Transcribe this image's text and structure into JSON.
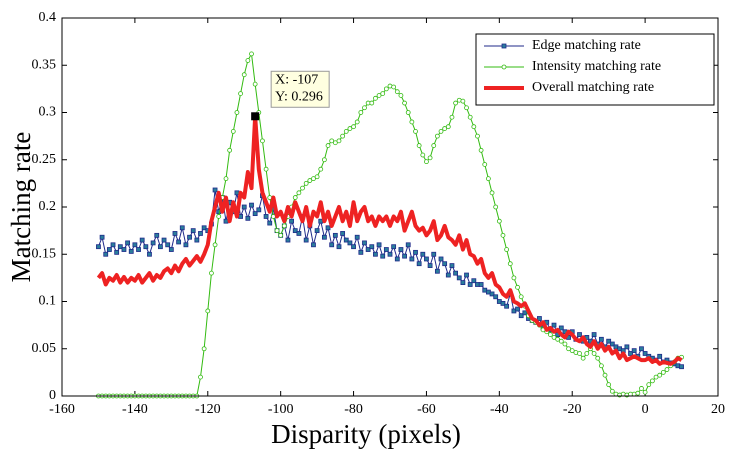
{
  "chart_data": {
    "type": "line",
    "xlabel": "Disparity (pixels)",
    "ylabel": "Matching rate",
    "xlim": [
      -160,
      20
    ],
    "xticks": [
      -160,
      -140,
      -120,
      -100,
      -80,
      -60,
      -40,
      -20,
      0,
      20
    ],
    "ylim": [
      0,
      0.4
    ],
    "yticks": [
      0,
      0.05,
      0.1,
      0.15,
      0.2,
      0.25,
      0.3,
      0.35,
      0.4
    ],
    "legend": "upper right",
    "x": [
      -150,
      -149,
      -148,
      -147,
      -146,
      -145,
      -144,
      -143,
      -142,
      -141,
      -140,
      -139,
      -138,
      -137,
      -136,
      -135,
      -134,
      -133,
      -132,
      -131,
      -130,
      -129,
      -128,
      -127,
      -126,
      -125,
      -124,
      -123,
      -122,
      -121,
      -120,
      -119,
      -118,
      -117,
      -116,
      -115,
      -114,
      -113,
      -112,
      -111,
      -110,
      -109,
      -108,
      -107,
      -106,
      -105,
      -104,
      -103,
      -102,
      -101,
      -100,
      -99,
      -98,
      -97,
      -96,
      -95,
      -94,
      -93,
      -92,
      -91,
      -90,
      -89,
      -88,
      -87,
      -86,
      -85,
      -84,
      -83,
      -82,
      -81,
      -80,
      -79,
      -78,
      -77,
      -76,
      -75,
      -74,
      -73,
      -72,
      -71,
      -70,
      -69,
      -68,
      -67,
      -66,
      -65,
      -64,
      -63,
      -62,
      -61,
      -60,
      -59,
      -58,
      -57,
      -56,
      -55,
      -54,
      -53,
      -52,
      -51,
      -50,
      -49,
      -48,
      -47,
      -46,
      -45,
      -44,
      -43,
      -42,
      -41,
      -40,
      -39,
      -38,
      -37,
      -36,
      -35,
      -34,
      -33,
      -32,
      -31,
      -30,
      -29,
      -28,
      -27,
      -26,
      -25,
      -24,
      -23,
      -22,
      -21,
      -20,
      -19,
      -18,
      -17,
      -16,
      -15,
      -14,
      -13,
      -12,
      -11,
      -10,
      -9,
      -8,
      -7,
      -6,
      -5,
      -4,
      -3,
      -2,
      -1,
      0,
      1,
      2,
      3,
      4,
      5,
      6,
      7,
      8,
      9,
      10
    ],
    "series": [
      {
        "name": "Edge matching rate",
        "color": "#1f2a8a",
        "marker": "square",
        "marker_color": "#2a7d9c",
        "line_width": 1,
        "values": [
          0.158,
          0.168,
          0.15,
          0.155,
          0.16,
          0.152,
          0.158,
          0.155,
          0.162,
          0.153,
          0.16,
          0.155,
          0.165,
          0.158,
          0.15,
          0.162,
          0.17,
          0.158,
          0.165,
          0.16,
          0.155,
          0.172,
          0.163,
          0.178,
          0.16,
          0.168,
          0.175,
          0.165,
          0.172,
          0.178,
          0.175,
          0.182,
          0.218,
          0.195,
          0.21,
          0.185,
          0.205,
          0.195,
          0.215,
          0.19,
          0.2,
          0.188,
          0.202,
          0.193,
          0.197,
          0.212,
          0.19,
          0.183,
          0.198,
          0.175,
          0.17,
          0.18,
          0.165,
          0.185,
          0.175,
          0.172,
          0.19,
          0.165,
          0.18,
          0.16,
          0.175,
          0.185,
          0.168,
          0.178,
          0.16,
          0.17,
          0.158,
          0.172,
          0.165,
          0.162,
          0.158,
          0.168,
          0.152,
          0.162,
          0.155,
          0.158,
          0.15,
          0.16,
          0.148,
          0.155,
          0.15,
          0.158,
          0.145,
          0.155,
          0.148,
          0.16,
          0.145,
          0.152,
          0.14,
          0.15,
          0.145,
          0.138,
          0.15,
          0.132,
          0.145,
          0.14,
          0.128,
          0.138,
          0.13,
          0.125,
          0.12,
          0.128,
          0.118,
          0.122,
          0.118,
          0.118,
          0.112,
          0.11,
          0.108,
          0.105,
          0.1,
          0.098,
          0.095,
          0.108,
          0.09,
          0.092,
          0.085,
          0.088,
          0.082,
          0.08,
          0.078,
          0.082,
          0.072,
          0.078,
          0.07,
          0.075,
          0.065,
          0.072,
          0.068,
          0.062,
          0.068,
          0.06,
          0.065,
          0.058,
          0.062,
          0.058,
          0.065,
          0.055,
          0.06,
          0.052,
          0.058,
          0.055,
          0.052,
          0.05,
          0.048,
          0.052,
          0.045,
          0.048,
          0.042,
          0.05,
          0.045,
          0.042,
          0.04,
          0.038,
          0.042,
          0.036,
          0.038,
          0.035,
          0.034,
          0.032,
          0.031
        ]
      },
      {
        "name": "Intensity matching rate",
        "color": "#33bb11",
        "marker": "circle",
        "marker_color": "#ffffff",
        "line_width": 1,
        "values": [
          0,
          0,
          0,
          0,
          0,
          0,
          0,
          0,
          0,
          0,
          0,
          0,
          0,
          0,
          0,
          0,
          0,
          0,
          0,
          0,
          0,
          0,
          0,
          0,
          0,
          0,
          0,
          0,
          0.02,
          0.05,
          0.09,
          0.13,
          0.16,
          0.19,
          0.21,
          0.23,
          0.26,
          0.28,
          0.3,
          0.32,
          0.34,
          0.355,
          0.362,
          0.33,
          0.3,
          0.27,
          0.24,
          0.21,
          0.19,
          0.175,
          0.17,
          0.18,
          0.19,
          0.2,
          0.21,
          0.215,
          0.22,
          0.225,
          0.228,
          0.23,
          0.232,
          0.24,
          0.25,
          0.265,
          0.27,
          0.268,
          0.27,
          0.275,
          0.28,
          0.283,
          0.285,
          0.29,
          0.3,
          0.305,
          0.31,
          0.31,
          0.315,
          0.318,
          0.32,
          0.325,
          0.328,
          0.327,
          0.322,
          0.318,
          0.31,
          0.3,
          0.29,
          0.28,
          0.265,
          0.255,
          0.248,
          0.252,
          0.265,
          0.275,
          0.28,
          0.283,
          0.285,
          0.295,
          0.31,
          0.313,
          0.312,
          0.305,
          0.295,
          0.285,
          0.275,
          0.26,
          0.245,
          0.23,
          0.215,
          0.2,
          0.185,
          0.17,
          0.155,
          0.14,
          0.125,
          0.115,
          0.105,
          0.095,
          0.085,
          0.08,
          0.078,
          0.075,
          0.07,
          0.068,
          0.065,
          0.062,
          0.06,
          0.058,
          0.055,
          0.05,
          0.048,
          0.046,
          0.045,
          0.04,
          0.045,
          0.05,
          0.045,
          0.04,
          0.032,
          0.022,
          0.012,
          0.005,
          0.002,
          0.001,
          0.002,
          0.001,
          0.002,
          0.002,
          0.003,
          0.008,
          0.004,
          0.012,
          0.016,
          0.02,
          0.022,
          0.025,
          0.028,
          0.032,
          0.036,
          0.04,
          0.041
        ]
      },
      {
        "name": "Overall matching rate",
        "color": "#ee2222",
        "marker": "none",
        "line_width": 4,
        "values": [
          0.125,
          0.13,
          0.118,
          0.125,
          0.122,
          0.128,
          0.12,
          0.126,
          0.12,
          0.125,
          0.122,
          0.128,
          0.12,
          0.125,
          0.13,
          0.122,
          0.128,
          0.125,
          0.132,
          0.135,
          0.13,
          0.138,
          0.132,
          0.14,
          0.145,
          0.138,
          0.143,
          0.148,
          0.142,
          0.15,
          0.16,
          0.185,
          0.2,
          0.215,
          0.195,
          0.21,
          0.185,
          0.205,
          0.19,
          0.215,
          0.21,
          0.237,
          0.22,
          0.296,
          0.24,
          0.215,
          0.205,
          0.195,
          0.21,
          0.19,
          0.195,
          0.185,
          0.2,
          0.19,
          0.205,
          0.195,
          0.185,
          0.2,
          0.18,
          0.195,
          0.19,
          0.205,
          0.185,
          0.195,
          0.18,
          0.19,
          0.2,
          0.185,
          0.195,
          0.18,
          0.205,
          0.185,
          0.195,
          0.2,
          0.185,
          0.19,
          0.18,
          0.19,
          0.185,
          0.19,
          0.18,
          0.19,
          0.185,
          0.195,
          0.175,
          0.185,
          0.195,
          0.18,
          0.175,
          0.178,
          0.17,
          0.175,
          0.185,
          0.165,
          0.17,
          0.18,
          0.168,
          0.165,
          0.16,
          0.17,
          0.155,
          0.165,
          0.15,
          0.148,
          0.14,
          0.145,
          0.13,
          0.125,
          0.13,
          0.118,
          0.115,
          0.108,
          0.105,
          0.112,
          0.1,
          0.098,
          0.095,
          0.098,
          0.09,
          0.082,
          0.08,
          0.075,
          0.078,
          0.07,
          0.072,
          0.068,
          0.07,
          0.065,
          0.062,
          0.068,
          0.065,
          0.06,
          0.058,
          0.062,
          0.055,
          0.052,
          0.058,
          0.05,
          0.055,
          0.048,
          0.052,
          0.045,
          0.048,
          0.04,
          0.045,
          0.038,
          0.04,
          0.042,
          0.04,
          0.038,
          0.038,
          0.04,
          0.036,
          0.038,
          0.034,
          0.036,
          0.035,
          0.034,
          0.036,
          0.04,
          0.038
        ]
      }
    ],
    "annotation": {
      "x": -107,
      "y": 0.296,
      "lines": [
        "X: -107",
        "Y: 0.296"
      ]
    }
  }
}
